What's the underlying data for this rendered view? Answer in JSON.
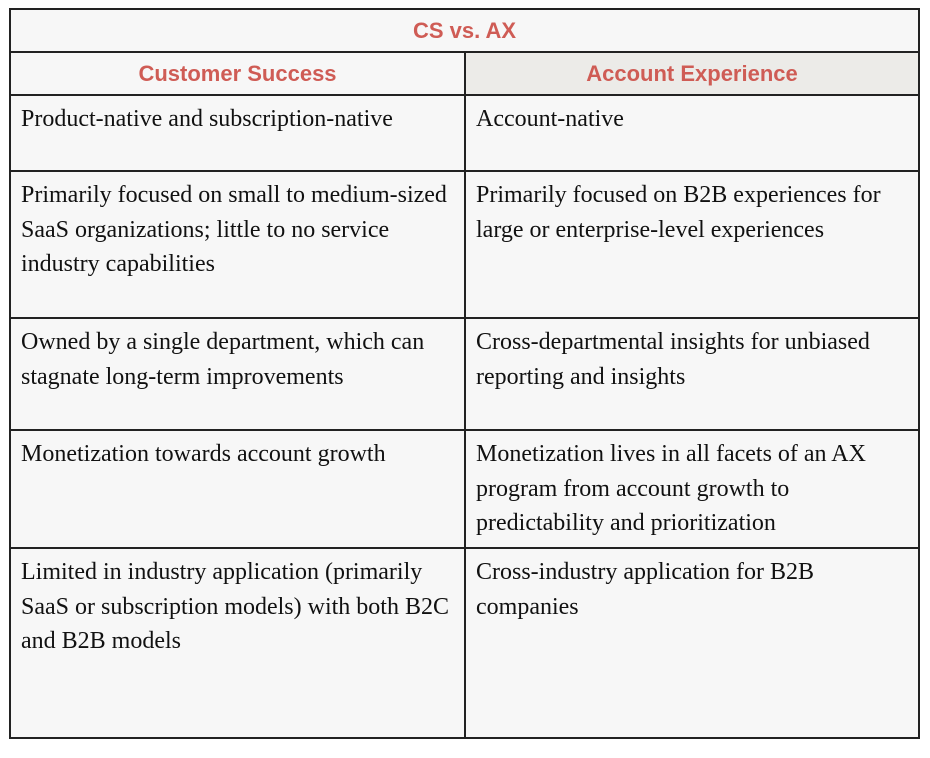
{
  "table": {
    "title": "CS vs. AX",
    "headers": [
      "Customer Success",
      "Account Experience"
    ],
    "rows": [
      [
        "Product-native and subscription-native",
        "Account-native"
      ],
      [
        "Primarily focused on small to medium-sized SaaS organizations; little to no service industry capabilities",
        "Primarily focused on B2B experiences for large or enterprise-level experiences"
      ],
      [
        "Owned by a single department, which can stagnate long-term improvements",
        "Cross-departmental insights for unbiased reporting and insights"
      ],
      [
        "Monetization towards account growth",
        "Monetization lives in all facets of an AX program from account growth to predictability and prioritization"
      ],
      [
        "Limited in industry application (primarily SaaS or subscription models) with both B2C and B2B models",
        "Cross-industry application for B2B companies"
      ]
    ]
  },
  "colors": {
    "accent": "#cf5c55",
    "cell_background": "#f7f7f7",
    "header_right_background": "#ecebe8",
    "border": "#222222",
    "text": "#111111"
  }
}
